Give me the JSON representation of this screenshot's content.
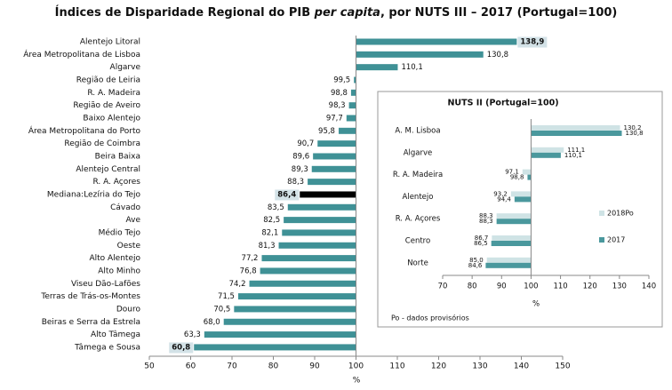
{
  "chart_data": [
    {
      "type": "bar",
      "orientation": "horizontal",
      "base": 100,
      "title_parts": [
        "Índices de Disparidade Regional do PIB ",
        "per capita",
        ", por NUTS III – 2017 (Portugal=100)"
      ],
      "xlabel": "%",
      "categories": [
        "Alentejo Litoral",
        "Área Metropolitana de Lisboa",
        "Algarve",
        "Região de Leiria",
        "R. A. Madeira",
        "Região de Aveiro",
        "Baixo Alentejo",
        "Área Metropolitana do Porto",
        "Região de Coimbra",
        "Beira Baixa",
        "Alentejo Central",
        "R. A. Açores",
        "Mediana:Lezíria do Tejo",
        "Cávado",
        "Ave",
        "Médio Tejo",
        "Oeste",
        "Alto Alentejo",
        "Alto Minho",
        "Viseu Dão-Lafões",
        "Terras de Trás-os-Montes",
        "Douro",
        "Beiras e Serra da Estrela",
        "Alto Tâmega",
        "Tâmega e Sousa"
      ],
      "values": [
        138.9,
        130.8,
        110.1,
        99.5,
        98.8,
        98.3,
        97.7,
        95.8,
        90.7,
        89.6,
        89.3,
        88.3,
        86.4,
        83.5,
        82.5,
        82.1,
        81.3,
        77.2,
        76.8,
        74.2,
        71.5,
        70.5,
        68.0,
        63.3,
        60.8
      ],
      "value_labels": [
        "138,9",
        "130,8",
        "110,1",
        "99,5",
        "98,8",
        "98,3",
        "97,7",
        "95,8",
        "90,7",
        "89,6",
        "89,3",
        "88,3",
        "86,4",
        "83,5",
        "82,5",
        "82,1",
        "81,3",
        "77,2",
        "76,8",
        "74,2",
        "71,5",
        "70,5",
        "68,0",
        "63,3",
        "60,8"
      ],
      "colors": [
        "#3f9196",
        "#3f9196",
        "#3f9196",
        "#3f9196",
        "#3f9196",
        "#3f9196",
        "#3f9196",
        "#3f9196",
        "#3f9196",
        "#3f9196",
        "#3f9196",
        "#3f9196",
        "#000000",
        "#3f9196",
        "#3f9196",
        "#3f9196",
        "#3f9196",
        "#3f9196",
        "#3f9196",
        "#3f9196",
        "#3f9196",
        "#3f9196",
        "#3f9196",
        "#3f9196",
        "#3f9196"
      ],
      "highlighted": [
        0,
        12,
        24
      ],
      "highlight_color": "#d3e2e7",
      "xlim": [
        50,
        150
      ],
      "xticks": [
        50,
        60,
        70,
        80,
        90,
        100,
        110,
        120,
        130,
        140,
        150
      ]
    },
    {
      "type": "bar",
      "orientation": "horizontal",
      "base": 100,
      "title": "NUTS II (Portugal=100)",
      "xlabel": "%",
      "note": "Po - dados provisórios",
      "categories": [
        "A. M. Lisboa",
        "Algarve",
        "R. A. Madeira",
        "Alentejo",
        "R. A. Açores",
        "Centro",
        "Norte"
      ],
      "series": [
        {
          "name": "2018Po",
          "color": "#cfe3e5",
          "values": [
            130.2,
            111.1,
            97.1,
            93.2,
            88.3,
            86.7,
            85.0
          ],
          "value_labels": [
            "130,2",
            "111,1",
            "97,1",
            "93,2",
            "88,3",
            "86,7",
            "85,0"
          ]
        },
        {
          "name": "2017",
          "color": "#4a989d",
          "values": [
            130.8,
            110.1,
            98.8,
            94.4,
            88.3,
            86.5,
            84.6
          ],
          "value_labels": [
            "130,8",
            "110,1",
            "98,8",
            "94,4",
            "88,3",
            "86,5",
            "84,6"
          ]
        }
      ],
      "legend": "right",
      "xlim": [
        70,
        140
      ],
      "xticks": [
        70,
        80,
        90,
        100,
        110,
        120,
        130,
        140
      ]
    }
  ]
}
